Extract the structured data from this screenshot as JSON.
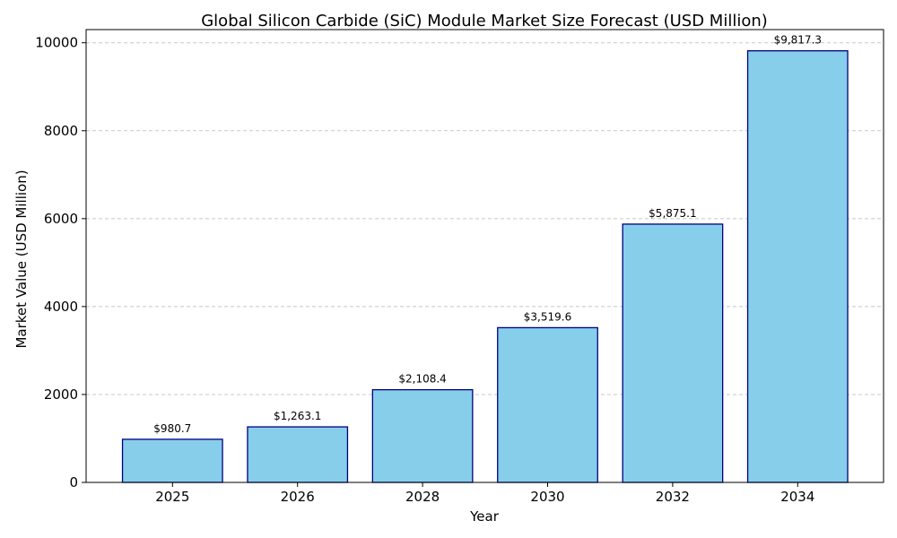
{
  "chart_data": {
    "type": "bar",
    "title": "Global Silicon Carbide (SiC) Module Market Size Forecast (USD Million)",
    "xlabel": "Year",
    "ylabel": "Market Value (USD Million)",
    "categories": [
      "2025",
      "2026",
      "2028",
      "2030",
      "2032",
      "2034"
    ],
    "values": [
      980.7,
      1263.1,
      2108.4,
      3519.6,
      5875.1,
      9817.3
    ],
    "value_labels": [
      "$980.7",
      "$1,263.1",
      "$2,108.4",
      "$3,519.6",
      "$5,875.1",
      "$9,817.3"
    ],
    "ylim": [
      0,
      10300
    ],
    "yticks": [
      0,
      2000,
      4000,
      6000,
      8000,
      10000
    ],
    "ytick_labels": [
      "0",
      "2000",
      "4000",
      "6000",
      "8000",
      "10000"
    ],
    "grid": "horizontal-dashed",
    "bar_color": "#87ceeb",
    "bar_edge_color": "#000080"
  }
}
